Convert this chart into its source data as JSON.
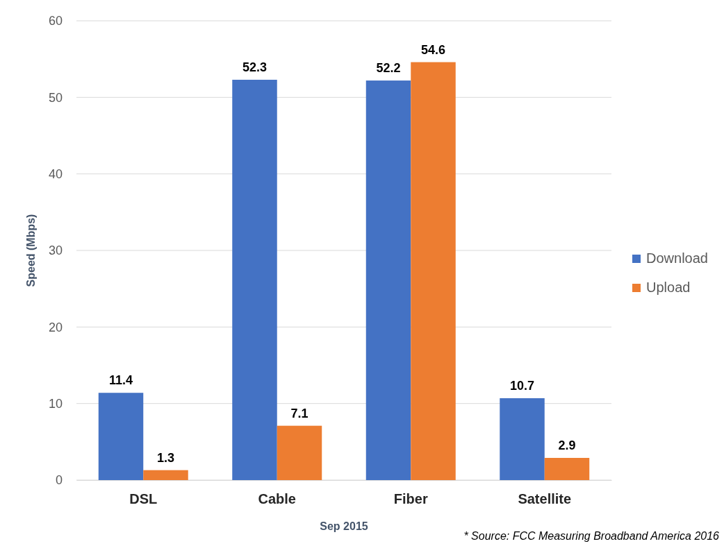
{
  "chart_data": {
    "type": "bar",
    "xlabel": "Sep 2015",
    "ylabel": "Speed (Mbps)",
    "categories": [
      "DSL",
      "Cable",
      "Fiber",
      "Satellite"
    ],
    "series": [
      {
        "name": "Download",
        "color": "#4472c4",
        "values": [
          11.4,
          52.3,
          52.2,
          10.7
        ]
      },
      {
        "name": "Upload",
        "color": "#ed7d31",
        "values": [
          1.3,
          7.1,
          54.6,
          2.9
        ]
      }
    ],
    "ylim": [
      0,
      60
    ],
    "yticks": [
      0,
      10,
      20,
      30,
      40,
      50,
      60
    ],
    "grid": "y",
    "legend": "right",
    "data_labels": true,
    "annotations": [
      "* Source: FCC Measuring Broadband America 2016"
    ]
  }
}
